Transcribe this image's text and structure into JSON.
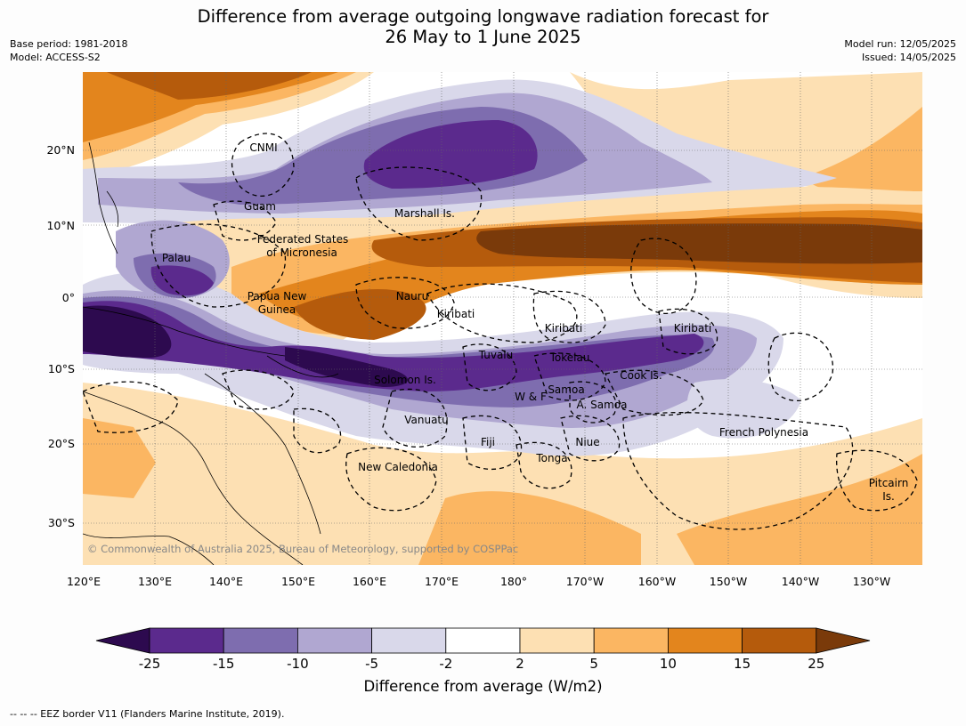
{
  "title_line1": "Difference from average outgoing longwave radiation forecast for",
  "title_line2": "26 May to 1 June 2025",
  "base_period": "Base period: 1981-2018",
  "model": "Model: ACCESS-S2",
  "model_run": "Model run: 12/05/2025",
  "issued": "Issued: 14/05/2025",
  "lon_labels": [
    "120°E",
    "130°E",
    "140°E",
    "150°E",
    "160°E",
    "170°E",
    "180°",
    "170°W",
    "160°W",
    "150°W",
    "140°W",
    "130°W"
  ],
  "lat_labels": [
    "20°N",
    "10°N",
    "0°",
    "10°S",
    "20°S",
    "30°S"
  ],
  "country_labels": [
    "CNMI",
    "Guam",
    "Marshall Is.",
    "Federated States",
    "of Micronesia",
    "Palau",
    "Papua New",
    "Guinea",
    "Nauru",
    "Kiribati",
    "Kiribati",
    "Kiribati",
    "Tuvalu",
    "Tokelau",
    "Solomon Is.",
    "Cook Is.",
    "Samoa",
    "W & F",
    "A. Samoa",
    "Vanuatu",
    "Fiji",
    "Niue",
    "French Polynesia",
    "Tonga",
    "New Caledonia",
    "Pitcairn",
    "Is."
  ],
  "copyright": "© Commonwealth of Australia 2025, Bureau of Meteorology, supported by COSPPac",
  "colorbar": {
    "ticks": [
      "-25",
      "-15",
      "-10",
      "-5",
      "-2",
      "2",
      "5",
      "10",
      "15",
      "25"
    ],
    "colors": [
      "#2d0a4f",
      "#5b2a8d",
      "#7e6daf",
      "#b0a7d1",
      "#d9d8ea",
      "#ffffff",
      "#fde0b3",
      "#fbb662",
      "#e3851d",
      "#b55b0c",
      "#7a3a0a"
    ],
    "title": "Difference from average (W/m2)"
  },
  "eez_note": "--  --  -- EEZ border V11 (Flanders Marine Institute, 2019)."
}
